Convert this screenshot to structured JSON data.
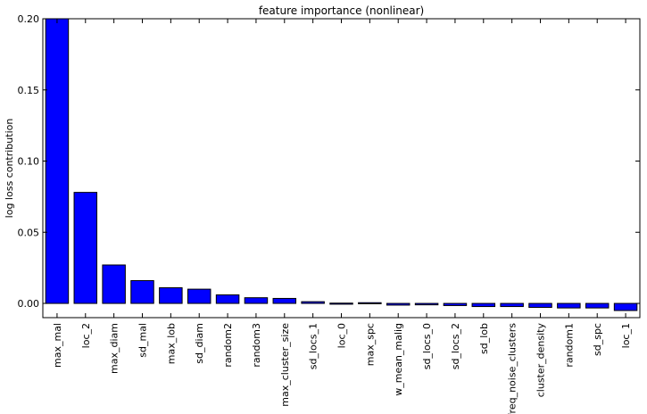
{
  "chart_data": {
    "type": "bar",
    "title": "feature importance (nonlinear)",
    "xlabel": "",
    "ylabel": "log loss contribution",
    "ylim": [
      -0.01,
      0.2
    ],
    "yticks": [
      0.0,
      0.05,
      0.1,
      0.15,
      0.2
    ],
    "ytick_labels": [
      "0.00",
      "0.05",
      "0.10",
      "0.15",
      "0.20"
    ],
    "grid": false,
    "bar_color": "#0000ff",
    "categories": [
      "max_mal",
      "loc_2",
      "max_diam",
      "sd_mal",
      "max_lob",
      "sd_diam",
      "random2",
      "random3",
      "max_cluster_size",
      "sd_locs_1",
      "loc_0",
      "max_spc",
      "w_mean_malig",
      "sd_locs_0",
      "sd_locs_2",
      "sd_lob",
      "freq_noise_clusters",
      "cluster_density",
      "random1",
      "sd_spc",
      "loc_1"
    ],
    "values": [
      0.2,
      0.078,
      0.027,
      0.016,
      0.011,
      0.01,
      0.006,
      0.004,
      0.0035,
      0.0012,
      0.0002,
      0.0005,
      -0.0012,
      -0.001,
      -0.0015,
      -0.0022,
      -0.0022,
      -0.0028,
      -0.0032,
      -0.0032,
      -0.005
    ]
  }
}
